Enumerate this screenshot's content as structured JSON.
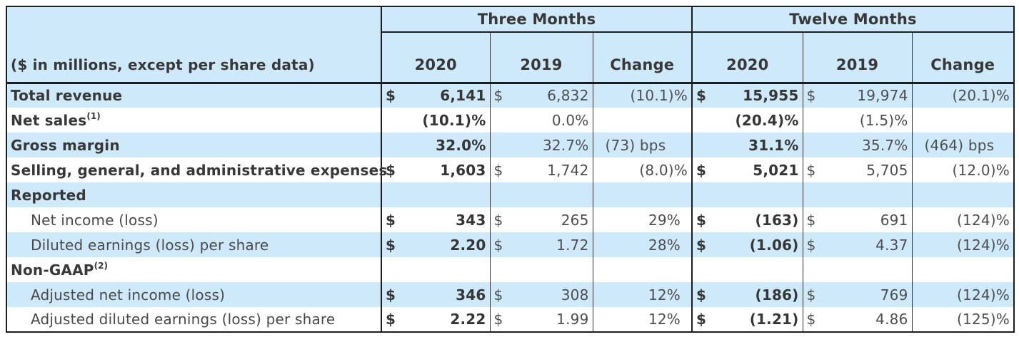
{
  "table": {
    "corner_label": "($ in millions, except per share data)",
    "period_groups": [
      "Three Months",
      "Twelve Months"
    ],
    "sub_columns": [
      "2020",
      "2019",
      "Change"
    ],
    "colors": {
      "row_highlight_blue": "#cde9fa",
      "border_strong": "#1d1d1d",
      "text_bold": "#383838",
      "text_regular": "#4e4e4e"
    },
    "rows": [
      {
        "label": "Total revenue",
        "sup": "",
        "indent": false,
        "bold_label": true,
        "shaded": true,
        "cells": [
          {
            "d": "$",
            "v": "6,141",
            "b": true
          },
          {
            "d": "$",
            "v": "6,832"
          },
          {
            "v": "(10.1)%"
          },
          {
            "d": "$",
            "v": "15,955",
            "b": true
          },
          {
            "d": "$",
            "v": "19,974"
          },
          {
            "v": "(20.1)%"
          }
        ]
      },
      {
        "label": "Net sales",
        "sup": "(1)",
        "indent": false,
        "bold_label": true,
        "shaded": false,
        "cells": [
          {
            "v": "(10.1)%",
            "b": true
          },
          {
            "v": "0.0%"
          },
          {
            "v": ""
          },
          {
            "v": "(20.4)%",
            "b": true
          },
          {
            "v": "(1.5)%"
          },
          {
            "v": ""
          }
        ]
      },
      {
        "label": "Gross margin",
        "sup": "",
        "indent": false,
        "bold_label": true,
        "shaded": true,
        "cells": [
          {
            "v": "32.0%",
            "b": true
          },
          {
            "v": "32.7%"
          },
          {
            "v": "(73) bps",
            "a": "left"
          },
          {
            "v": "31.1%",
            "b": true
          },
          {
            "v": "35.7%"
          },
          {
            "v": "(464) bps",
            "a": "left"
          }
        ]
      },
      {
        "label": "Selling, general, and administrative expenses",
        "sup": "",
        "indent": false,
        "bold_label": true,
        "shaded": false,
        "cells": [
          {
            "d": "$",
            "v": "1,603",
            "b": true
          },
          {
            "d": "$",
            "v": "1,742"
          },
          {
            "v": "(8.0)%"
          },
          {
            "d": "$",
            "v": "5,021",
            "b": true
          },
          {
            "d": "$",
            "v": "5,705"
          },
          {
            "v": "(12.0)%"
          }
        ]
      },
      {
        "label": "Reported",
        "sup": "",
        "indent": false,
        "bold_label": true,
        "shaded": true,
        "cells": [
          {},
          {},
          {},
          {},
          {},
          {}
        ]
      },
      {
        "label": "Net income (loss)",
        "sup": "",
        "indent": true,
        "bold_label": false,
        "shaded": false,
        "cells": [
          {
            "d": "$",
            "v": "343",
            "b": true
          },
          {
            "d": "$",
            "v": "265"
          },
          {
            "v": "29%",
            "pad": true
          },
          {
            "d": "$",
            "v": "(163)",
            "b": true
          },
          {
            "d": "$",
            "v": "691"
          },
          {
            "v": "(124)%"
          }
        ]
      },
      {
        "label": "Diluted earnings (loss) per share",
        "sup": "",
        "indent": true,
        "bold_label": false,
        "shaded": true,
        "cells": [
          {
            "d": "$",
            "v": "2.20",
            "b": true
          },
          {
            "d": "$",
            "v": "1.72"
          },
          {
            "v": "28%",
            "pad": true
          },
          {
            "d": "$",
            "v": "(1.06)",
            "b": true
          },
          {
            "d": "$",
            "v": "4.37"
          },
          {
            "v": "(124)%"
          }
        ]
      },
      {
        "label": "Non-GAAP",
        "sup": "(2)",
        "indent": false,
        "bold_label": true,
        "shaded": false,
        "cells": [
          {},
          {},
          {},
          {},
          {},
          {}
        ]
      },
      {
        "label": "Adjusted net income (loss)",
        "sup": "",
        "indent": true,
        "bold_label": false,
        "shaded": true,
        "cells": [
          {
            "d": "$",
            "v": "346",
            "b": true
          },
          {
            "d": "$",
            "v": "308"
          },
          {
            "v": "12%",
            "pad": true
          },
          {
            "d": "$",
            "v": "(186)",
            "b": true
          },
          {
            "d": "$",
            "v": "769"
          },
          {
            "v": "(124)%"
          }
        ]
      },
      {
        "label": "Adjusted diluted earnings (loss) per share",
        "sup": "",
        "indent": true,
        "bold_label": false,
        "shaded": false,
        "cells": [
          {
            "d": "$",
            "v": "2.22",
            "b": true
          },
          {
            "d": "$",
            "v": "1.99"
          },
          {
            "v": "12%",
            "pad": true
          },
          {
            "d": "$",
            "v": "(1.21)",
            "b": true
          },
          {
            "d": "$",
            "v": "4.86"
          },
          {
            "v": "(125)%"
          }
        ]
      }
    ]
  }
}
